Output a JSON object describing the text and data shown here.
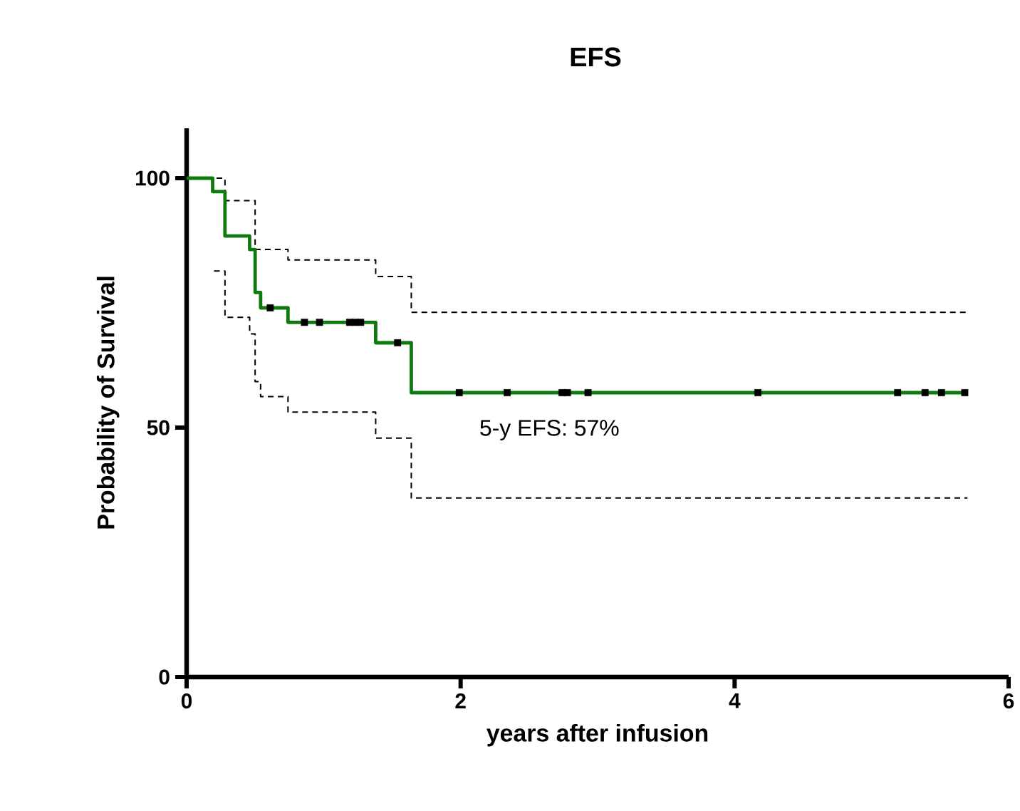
{
  "chart_data": {
    "type": "step",
    "title": "EFS",
    "xlabel": "years after infusion",
    "ylabel": "Probability of Survival",
    "xlim": [
      0,
      6
    ],
    "ylim": [
      0,
      110
    ],
    "xticks": [
      0,
      2,
      4,
      6
    ],
    "yticks": [
      0,
      50,
      100
    ],
    "grid": false,
    "annotations": [
      "5-y EFS: 57%"
    ],
    "series": [
      {
        "color": "#000000",
        "line_style": "dashed",
        "x": [
          0,
          0.28,
          0.5,
          0.74,
          1.38,
          1.64,
          5.7
        ],
        "values": [
          100,
          95.5,
          85.7,
          83.6,
          80.3,
          73.1,
          73.1
        ]
      },
      {
        "color": "#000000",
        "line_style": "dashed",
        "x": [
          0.2,
          0.28,
          0.46,
          0.5,
          0.54,
          0.74,
          1.38,
          1.64,
          5.7
        ],
        "values": [
          81.4,
          72.1,
          68.8,
          59.2,
          56.2,
          53.1,
          47.9,
          35.9,
          35.9
        ]
      },
      {
        "color": "#0e7a0e",
        "line_style": "solid",
        "x": [
          0,
          0.19,
          0.28,
          0.46,
          0.5,
          0.54,
          0.74,
          1.38,
          1.64,
          5.7
        ],
        "values": [
          100,
          97.3,
          88.4,
          85.7,
          77.1,
          74,
          71.1,
          67,
          57,
          57
        ]
      },
      {
        "type": "scatter",
        "color": "#000000",
        "marker": "square",
        "x": [
          0.61,
          0.86,
          0.97,
          1.19,
          1.23,
          1.27,
          1.54,
          1.99,
          2.34,
          2.74,
          2.78,
          2.93,
          4.17,
          5.19,
          5.39,
          5.51,
          5.68
        ],
        "values": [
          74,
          71.1,
          71.1,
          71.1,
          71.1,
          71.1,
          67,
          57,
          57,
          57,
          57,
          57,
          57,
          57,
          57,
          57,
          57
        ]
      }
    ]
  }
}
